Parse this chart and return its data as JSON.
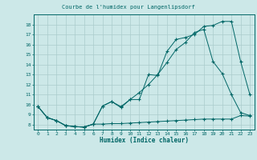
{
  "title": "Courbe de l'humidex pour Langenlipsdorf",
  "xlabel": "Humidex (Indice chaleur)",
  "background_color": "#cce8e8",
  "grid_color": "#aacccc",
  "line_color": "#006666",
  "xlim": [
    -0.5,
    23.5
  ],
  "ylim": [
    7.5,
    19.0
  ],
  "yticks": [
    8,
    9,
    10,
    11,
    12,
    13,
    14,
    15,
    16,
    17,
    18
  ],
  "xticks": [
    0,
    1,
    2,
    3,
    4,
    5,
    6,
    7,
    8,
    9,
    10,
    11,
    12,
    13,
    14,
    15,
    16,
    17,
    18,
    19,
    20,
    21,
    22,
    23
  ],
  "line1_x": [
    0,
    1,
    2,
    3,
    4,
    5,
    6,
    7,
    8,
    9,
    10,
    11,
    12,
    13,
    14,
    15,
    16,
    17,
    18,
    19,
    20,
    21,
    22,
    23
  ],
  "line1_y": [
    9.8,
    8.7,
    8.4,
    7.9,
    7.8,
    7.75,
    8.05,
    9.85,
    10.3,
    9.8,
    10.5,
    10.5,
    13.0,
    12.9,
    15.3,
    16.5,
    16.7,
    17.0,
    17.8,
    17.9,
    18.3,
    18.3,
    14.3,
    11.0
  ],
  "line2_x": [
    0,
    1,
    2,
    3,
    4,
    5,
    6,
    7,
    8,
    9,
    10,
    11,
    12,
    13,
    14,
    15,
    16,
    17,
    18,
    19,
    20,
    21,
    22,
    23
  ],
  "line2_y": [
    9.8,
    8.7,
    8.4,
    7.9,
    7.8,
    7.75,
    8.05,
    9.85,
    10.3,
    9.7,
    10.5,
    11.2,
    12.0,
    13.0,
    14.2,
    15.5,
    16.2,
    17.2,
    17.5,
    14.3,
    13.1,
    11.0,
    9.2,
    8.9
  ],
  "line3_x": [
    0,
    1,
    2,
    3,
    4,
    5,
    6,
    7,
    8,
    9,
    10,
    11,
    12,
    13,
    14,
    15,
    16,
    17,
    18,
    19,
    20,
    21,
    22,
    23
  ],
  "line3_y": [
    9.8,
    8.7,
    8.4,
    7.9,
    7.8,
    7.75,
    8.05,
    8.05,
    8.1,
    8.1,
    8.15,
    8.2,
    8.25,
    8.3,
    8.35,
    8.4,
    8.45,
    8.5,
    8.55,
    8.55,
    8.55,
    8.55,
    8.9,
    8.85
  ]
}
